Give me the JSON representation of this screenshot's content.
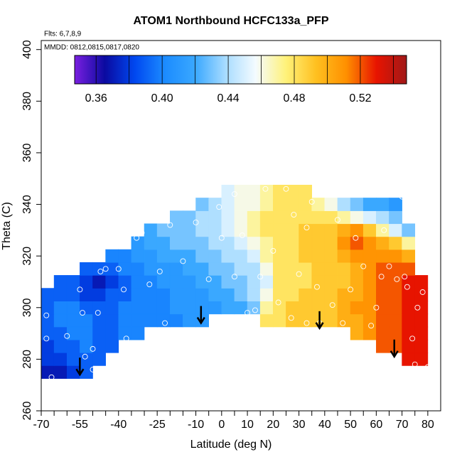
{
  "chart_data": {
    "type": "heatmap",
    "title": "ATOM1 Northbound HCFC133a_PFP",
    "annotations": [
      "Flts: 6,7,8,9",
      "MMDD: 0812,0815,0817,0820"
    ],
    "x_label": "Latitude (deg N)",
    "y_label": "Theta (C)",
    "xlim": [
      -70,
      85
    ],
    "ylim": [
      260,
      403.5
    ],
    "xticks": [
      -70,
      -55,
      -40,
      -25,
      -10,
      0,
      10,
      20,
      30,
      40,
      50,
      60,
      70,
      80
    ],
    "xminorticks": [
      -65,
      -60,
      -50,
      -45,
      -35,
      -30,
      -20,
      -15,
      -5,
      5,
      15,
      25,
      35,
      45,
      55,
      65,
      75
    ],
    "yticks": [
      260,
      280,
      300,
      320,
      340,
      360,
      380,
      400
    ],
    "zlim": [
      0.347,
      0.548
    ],
    "zticks": [
      0.36,
      {
        "value": 0.4,
        "label": "0.40"
      },
      0.44,
      0.48,
      0.52
    ],
    "colorbar_breaks": [
      0.36,
      0.38,
      0.4,
      0.42,
      0.44,
      0.46,
      0.48,
      0.5,
      0.52,
      0.54
    ],
    "colormap": [
      "#7a1fe0",
      "#0a0aa0",
      "#0048f0",
      "#1c8cff",
      "#3aa8ff",
      "#a8dcff",
      "#f4fbff",
      "#fff27a",
      "#ffc020",
      "#ff9000",
      "#e81400",
      "#a01818"
    ],
    "x": [
      -67.5,
      -62.5,
      -57.5,
      -52.5,
      -47.5,
      -42.5,
      -37.5,
      -32.5,
      -27.5,
      -22.5,
      -17.5,
      -12.5,
      -7.5,
      -2.5,
      2.5,
      7.5,
      12.5,
      17.5,
      22.5,
      27.5,
      32.5,
      37.5,
      42.5,
      47.5,
      52.5,
      57.5,
      62.5,
      67.5,
      72.5,
      77.5
    ],
    "y": [
      275,
      280,
      285,
      290,
      295,
      300,
      305,
      310,
      315,
      320,
      325,
      330,
      335,
      340,
      345
    ],
    "z": [
      [
        0.37,
        0.37,
        0.38,
        0.39,
        null,
        null,
        null,
        null,
        null,
        null,
        null,
        null,
        null,
        null,
        null,
        null,
        null,
        null,
        null,
        null,
        null,
        null,
        null,
        null,
        null,
        null,
        null,
        null,
        null,
        null
      ],
      [
        0.38,
        0.38,
        0.39,
        0.39,
        0.39,
        null,
        null,
        null,
        null,
        null,
        null,
        null,
        null,
        null,
        null,
        null,
        null,
        null,
        null,
        null,
        null,
        null,
        null,
        null,
        null,
        null,
        null,
        null,
        0.53,
        0.53
      ],
      [
        0.38,
        0.39,
        0.39,
        0.4,
        0.39,
        0.39,
        null,
        null,
        null,
        null,
        null,
        null,
        null,
        null,
        null,
        null,
        null,
        null,
        null,
        null,
        null,
        null,
        null,
        null,
        null,
        null,
        0.52,
        0.52,
        0.53,
        0.53
      ],
      [
        0.39,
        0.39,
        0.4,
        0.4,
        0.39,
        0.39,
        0.4,
        0.4,
        null,
        null,
        null,
        null,
        null,
        null,
        null,
        null,
        null,
        null,
        null,
        null,
        null,
        null,
        null,
        null,
        0.5,
        0.51,
        0.52,
        0.52,
        0.53,
        0.53
      ],
      [
        0.39,
        0.4,
        0.4,
        0.4,
        0.39,
        0.39,
        0.4,
        0.4,
        0.4,
        0.4,
        0.4,
        0.41,
        0.41,
        null,
        null,
        null,
        null,
        0.48,
        0.48,
        0.49,
        0.49,
        0.49,
        0.49,
        0.5,
        0.5,
        0.51,
        0.52,
        0.52,
        0.53,
        0.53
      ],
      [
        0.39,
        0.4,
        0.4,
        0.39,
        0.39,
        0.39,
        0.4,
        0.4,
        0.4,
        0.4,
        0.41,
        0.41,
        0.41,
        0.41,
        0.42,
        0.42,
        0.43,
        0.47,
        0.48,
        0.49,
        0.49,
        0.49,
        0.49,
        0.5,
        0.51,
        0.51,
        0.52,
        0.52,
        0.53,
        0.53
      ],
      [
        0.39,
        0.39,
        0.39,
        0.38,
        0.38,
        0.39,
        0.39,
        0.4,
        0.4,
        0.4,
        0.41,
        0.41,
        0.41,
        0.42,
        0.42,
        0.43,
        0.44,
        0.46,
        0.48,
        0.48,
        0.49,
        0.49,
        0.49,
        0.5,
        0.5,
        0.51,
        0.52,
        0.52,
        0.53,
        0.53
      ],
      [
        null,
        0.39,
        0.39,
        0.38,
        0.37,
        0.38,
        0.39,
        0.4,
        0.4,
        0.41,
        0.41,
        0.41,
        0.42,
        0.42,
        0.43,
        0.43,
        0.44,
        0.45,
        0.48,
        0.48,
        0.48,
        0.49,
        0.49,
        0.49,
        0.5,
        0.51,
        0.52,
        0.52,
        0.53,
        0.53
      ],
      [
        null,
        null,
        null,
        0.39,
        0.39,
        0.39,
        0.4,
        0.4,
        0.41,
        0.41,
        0.41,
        0.42,
        0.42,
        0.43,
        0.43,
        0.44,
        0.44,
        0.46,
        0.48,
        0.48,
        0.48,
        0.49,
        0.49,
        0.49,
        0.5,
        0.51,
        0.52,
        0.52,
        0.52,
        null
      ],
      [
        null,
        null,
        null,
        null,
        null,
        0.4,
        0.4,
        0.41,
        0.41,
        0.42,
        0.42,
        0.42,
        0.43,
        0.43,
        0.44,
        0.44,
        0.45,
        0.47,
        0.48,
        0.48,
        0.49,
        0.49,
        0.49,
        0.5,
        0.51,
        0.51,
        0.51,
        0.51,
        0.5,
        null
      ],
      [
        null,
        null,
        null,
        null,
        null,
        null,
        null,
        0.41,
        0.42,
        0.42,
        0.43,
        0.43,
        0.43,
        0.44,
        0.44,
        0.45,
        0.46,
        0.47,
        0.48,
        0.48,
        0.49,
        0.49,
        0.49,
        0.51,
        0.52,
        0.51,
        0.5,
        0.49,
        0.47,
        null
      ],
      [
        null,
        null,
        null,
        null,
        null,
        null,
        null,
        null,
        0.42,
        0.43,
        0.43,
        0.43,
        0.44,
        0.44,
        0.45,
        0.46,
        0.47,
        0.48,
        0.48,
        0.48,
        0.49,
        0.49,
        0.49,
        0.5,
        0.51,
        0.49,
        0.47,
        0.45,
        0.43,
        null
      ],
      [
        null,
        null,
        null,
        null,
        null,
        null,
        null,
        null,
        null,
        null,
        0.43,
        0.43,
        0.44,
        0.44,
        0.45,
        0.46,
        0.47,
        0.48,
        0.48,
        0.48,
        0.48,
        0.48,
        0.48,
        0.47,
        0.46,
        0.45,
        0.44,
        0.43,
        null,
        null
      ],
      [
        null,
        null,
        null,
        null,
        null,
        null,
        null,
        null,
        null,
        null,
        null,
        null,
        0.43,
        0.44,
        0.45,
        0.46,
        0.46,
        0.47,
        0.48,
        0.48,
        0.48,
        0.47,
        0.46,
        0.44,
        0.43,
        0.42,
        0.42,
        0.41,
        null,
        null
      ],
      [
        null,
        null,
        null,
        null,
        null,
        null,
        null,
        null,
        null,
        null,
        null,
        null,
        null,
        null,
        0.45,
        0.46,
        0.46,
        0.47,
        0.48,
        0.48,
        0.48,
        null,
        null,
        null,
        null,
        null,
        null,
        null,
        null,
        null
      ]
    ],
    "samples": {
      "x": [
        -68,
        -68,
        -67,
        -66,
        -60,
        -55,
        -54,
        -53,
        -50,
        -50,
        -48,
        -47,
        -45,
        -40,
        -38,
        -37,
        -33,
        -31,
        -28,
        -27,
        -24,
        -22,
        -20,
        -15,
        -10,
        -5,
        -1,
        0,
        5,
        5,
        8,
        10,
        13,
        15,
        17,
        20,
        22,
        25,
        27,
        28,
        30,
        33,
        33,
        35,
        37,
        38,
        43,
        45,
        47,
        50,
        52,
        55,
        58,
        60,
        62,
        65,
        68,
        70,
        72,
        74,
        75,
        76,
        78,
        80,
        71,
        63
      ],
      "y": [
        297,
        288,
        309,
        273,
        289,
        307,
        298,
        281,
        284,
        276,
        298,
        314,
        315,
        315,
        307,
        288,
        327,
        329,
        309,
        291,
        314,
        294,
        332,
        318,
        333,
        311,
        339,
        327,
        312,
        344,
        328,
        298,
        299,
        312,
        346,
        322,
        302,
        346,
        296,
        336,
        313,
        294,
        331,
        341,
        308,
        294,
        301,
        334,
        294,
        307,
        327,
        316,
        293,
        300,
        312,
        316,
        311,
        343,
        308,
        288,
        278,
        300,
        306,
        277,
        312,
        330
      ]
    },
    "arrows": {
      "x": [
        -55,
        -8,
        38,
        67
      ],
      "y": [
        274,
        294,
        292,
        281
      ]
    }
  }
}
